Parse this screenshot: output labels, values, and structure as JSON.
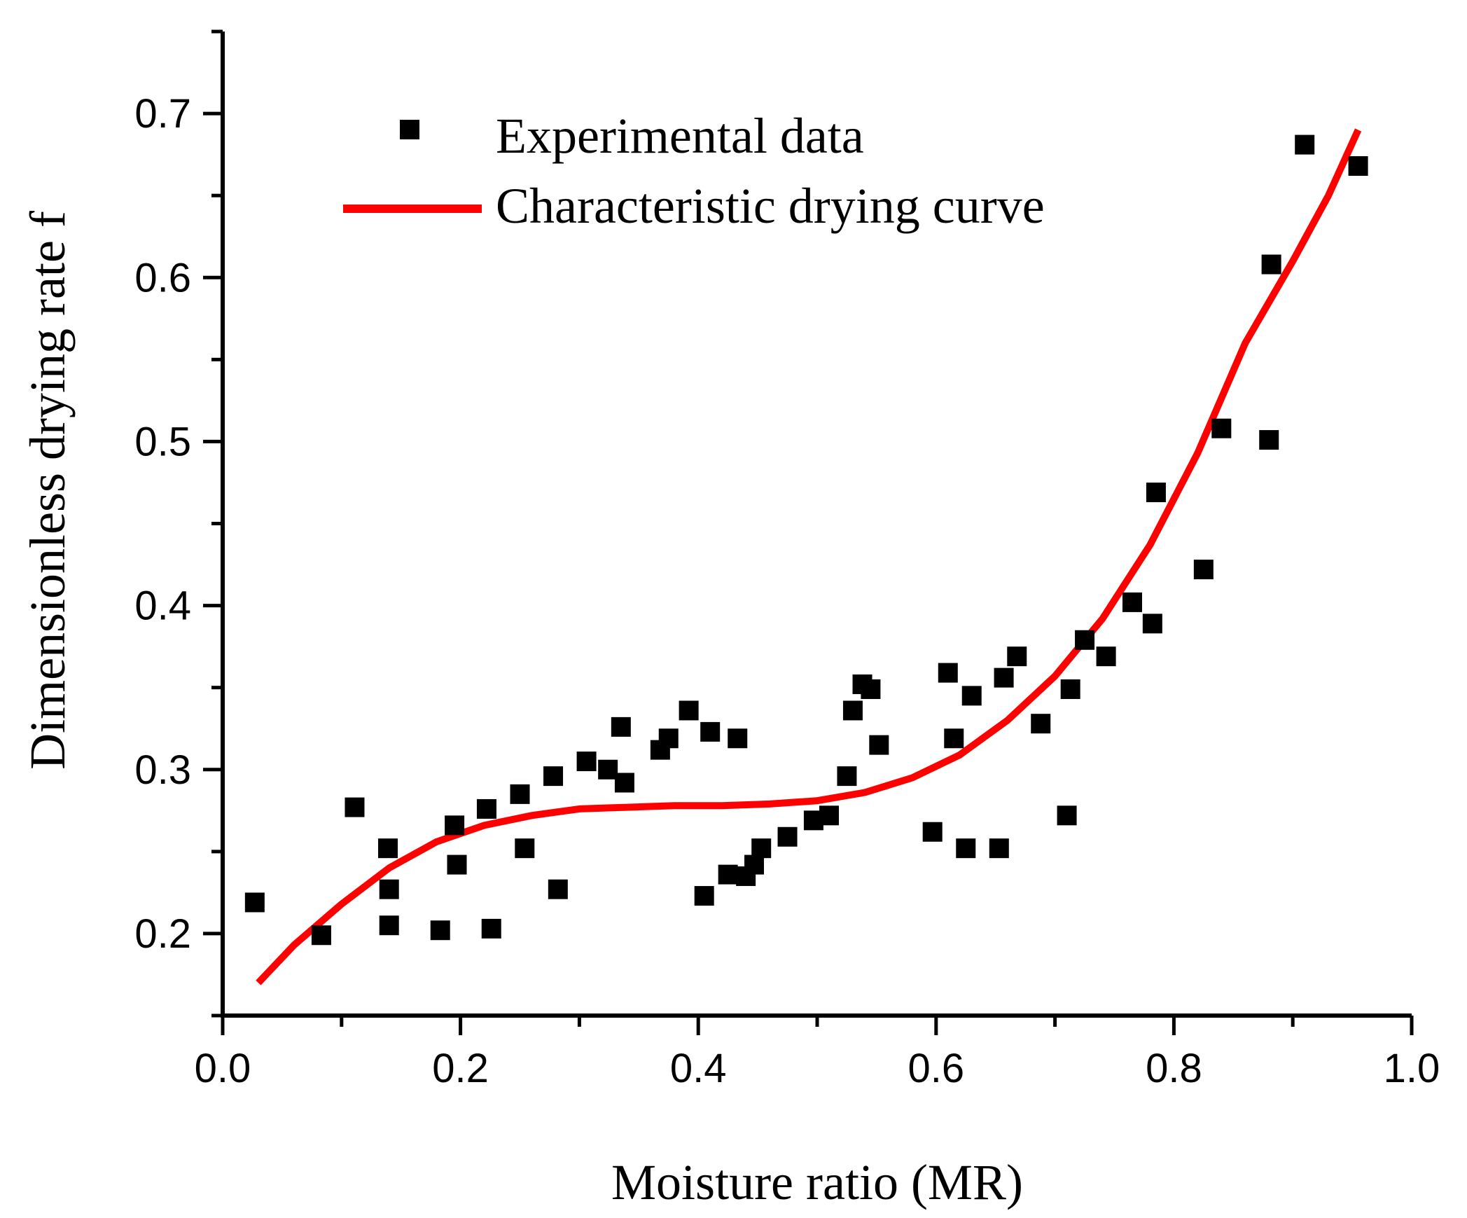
{
  "chart_data": {
    "type": "scatter",
    "title": "",
    "xlabel": "Moisture ratio (MR)",
    "ylabel": "Dimensionless drying rate f",
    "xlim": [
      0.0,
      1.0
    ],
    "ylim": [
      0.15,
      0.75
    ],
    "xticks": [
      0.0,
      0.2,
      0.4,
      0.6,
      0.8,
      1.0
    ],
    "xtick_labels": [
      "0.0",
      "0.2",
      "0.4",
      "0.6",
      "0.8",
      "1.0"
    ],
    "yticks": [
      0.2,
      0.3,
      0.4,
      0.5,
      0.6,
      0.7
    ],
    "ytick_labels": [
      "0.2",
      "0.3",
      "0.4",
      "0.5",
      "0.6",
      "0.7"
    ],
    "grid": false,
    "legend_position": "top-left",
    "colors": {
      "points": "#000000",
      "curve": "#ff0000"
    },
    "series": [
      {
        "name": "Experimental data",
        "kind": "scatter",
        "marker": "square",
        "points": [
          [
            0.027,
            0.219
          ],
          [
            0.083,
            0.199
          ],
          [
            0.111,
            0.277
          ],
          [
            0.139,
            0.252
          ],
          [
            0.14,
            0.227
          ],
          [
            0.14,
            0.205
          ],
          [
            0.183,
            0.202
          ],
          [
            0.195,
            0.266
          ],
          [
            0.197,
            0.242
          ],
          [
            0.222,
            0.276
          ],
          [
            0.226,
            0.203
          ],
          [
            0.25,
            0.285
          ],
          [
            0.254,
            0.252
          ],
          [
            0.278,
            0.296
          ],
          [
            0.282,
            0.227
          ],
          [
            0.306,
            0.305
          ],
          [
            0.324,
            0.3
          ],
          [
            0.335,
            0.326
          ],
          [
            0.338,
            0.292
          ],
          [
            0.368,
            0.312
          ],
          [
            0.375,
            0.319
          ],
          [
            0.392,
            0.336
          ],
          [
            0.405,
            0.223
          ],
          [
            0.41,
            0.323
          ],
          [
            0.425,
            0.236
          ],
          [
            0.433,
            0.319
          ],
          [
            0.44,
            0.235
          ],
          [
            0.447,
            0.242
          ],
          [
            0.453,
            0.252
          ],
          [
            0.475,
            0.259
          ],
          [
            0.497,
            0.269
          ],
          [
            0.51,
            0.272
          ],
          [
            0.525,
            0.296
          ],
          [
            0.53,
            0.336
          ],
          [
            0.538,
            0.352
          ],
          [
            0.545,
            0.349
          ],
          [
            0.552,
            0.315
          ],
          [
            0.597,
            0.262
          ],
          [
            0.61,
            0.359
          ],
          [
            0.615,
            0.319
          ],
          [
            0.625,
            0.252
          ],
          [
            0.63,
            0.345
          ],
          [
            0.653,
            0.252
          ],
          [
            0.657,
            0.356
          ],
          [
            0.668,
            0.369
          ],
          [
            0.688,
            0.328
          ],
          [
            0.71,
            0.272
          ],
          [
            0.713,
            0.349
          ],
          [
            0.725,
            0.379
          ],
          [
            0.743,
            0.369
          ],
          [
            0.765,
            0.402
          ],
          [
            0.782,
            0.389
          ],
          [
            0.785,
            0.469
          ],
          [
            0.825,
            0.422
          ],
          [
            0.84,
            0.508
          ],
          [
            0.88,
            0.501
          ],
          [
            0.882,
            0.608
          ],
          [
            0.91,
            0.681
          ],
          [
            0.955,
            0.668
          ]
        ]
      },
      {
        "name": "Characteristic drying curve",
        "kind": "line",
        "points": [
          [
            0.03,
            0.17
          ],
          [
            0.06,
            0.193
          ],
          [
            0.1,
            0.218
          ],
          [
            0.14,
            0.24
          ],
          [
            0.18,
            0.256
          ],
          [
            0.22,
            0.266
          ],
          [
            0.26,
            0.272
          ],
          [
            0.3,
            0.276
          ],
          [
            0.34,
            0.277
          ],
          [
            0.38,
            0.278
          ],
          [
            0.42,
            0.278
          ],
          [
            0.46,
            0.279
          ],
          [
            0.5,
            0.281
          ],
          [
            0.54,
            0.286
          ],
          [
            0.58,
            0.295
          ],
          [
            0.62,
            0.309
          ],
          [
            0.66,
            0.33
          ],
          [
            0.7,
            0.357
          ],
          [
            0.74,
            0.392
          ],
          [
            0.78,
            0.437
          ],
          [
            0.82,
            0.493
          ],
          [
            0.86,
            0.56
          ],
          [
            0.9,
            0.61
          ],
          [
            0.93,
            0.65
          ],
          [
            0.955,
            0.69
          ]
        ]
      }
    ]
  }
}
